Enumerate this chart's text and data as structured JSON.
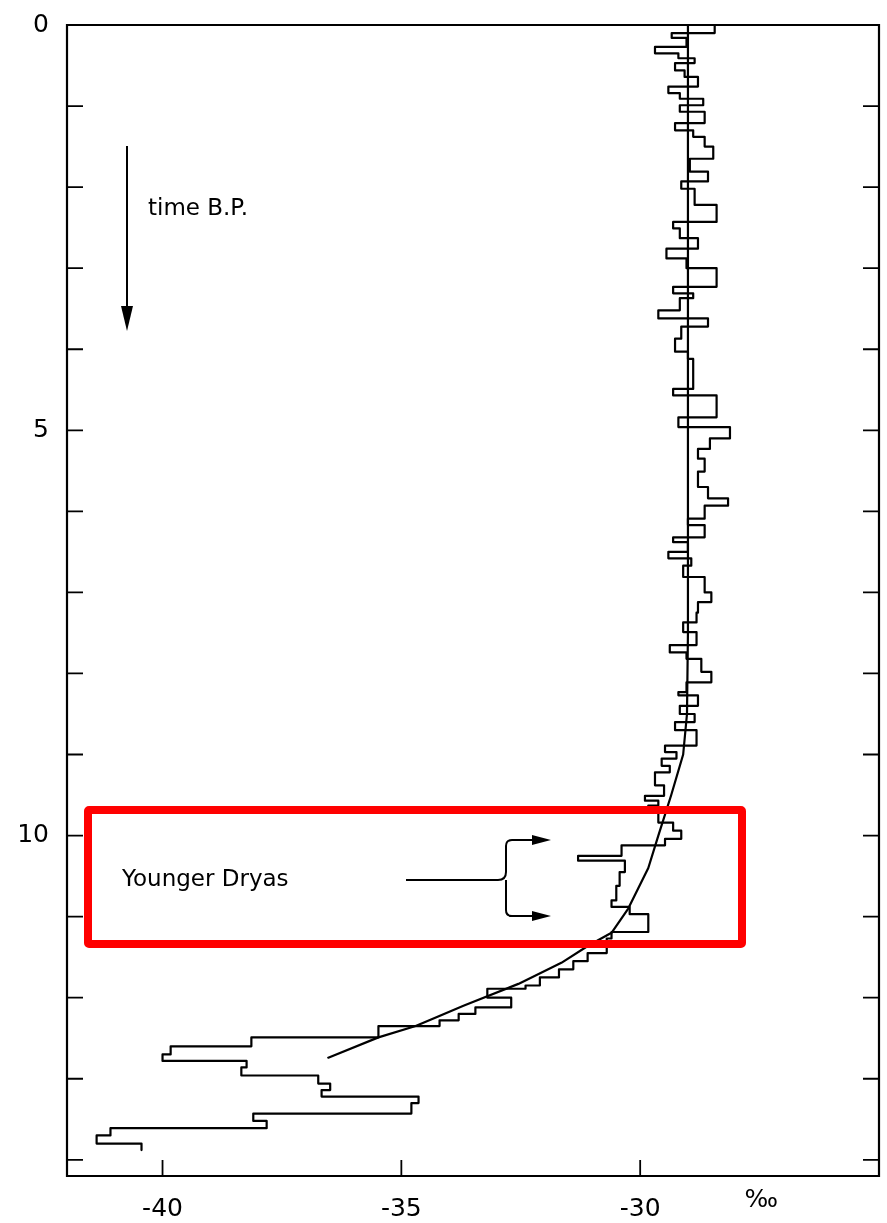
{
  "chart_data": {
    "type": "step",
    "orientation": "horizontal",
    "xlabel": "‰",
    "annotations": [
      "time B.P.",
      "Younger Dryas"
    ],
    "xlim": [
      -42,
      -25
    ],
    "xticks": [
      -40,
      -35,
      -30
    ],
    "ylim": [
      14.2,
      0
    ],
    "yticks": [
      0,
      {
        "value": 1,
        "label": null
      },
      {
        "value": 2,
        "label": null
      },
      {
        "value": 3,
        "label": null
      },
      {
        "value": 4,
        "label": null
      },
      5,
      {
        "value": 6,
        "label": null
      },
      {
        "value": 7,
        "label": null
      },
      {
        "value": 8,
        "label": null
      },
      {
        "value": 9,
        "label": null
      },
      10,
      {
        "value": 11,
        "label": null
      },
      {
        "value": 12,
        "label": null
      },
      {
        "value": 13,
        "label": null
      },
      {
        "value": 14,
        "label": null
      }
    ],
    "series": [
      {
        "color": "#000000",
        "x": [
          0,
          0.1,
          0.16,
          0.27,
          0.35,
          0.41,
          0.47,
          0.56,
          0.64,
          0.76,
          0.84,
          0.91,
          0.99,
          1.07,
          1.21,
          1.3,
          1.38,
          1.5,
          1.65,
          1.81,
          1.93,
          2.02,
          2.22,
          2.43,
          2.51,
          2.63,
          2.76,
          2.88,
          3.0,
          3.23,
          3.31,
          3.37,
          3.52,
          3.62,
          3.72,
          3.87,
          4.03,
          4.12,
          4.49,
          4.57,
          4.84,
          4.96,
          5.1,
          5.23,
          5.35,
          5.51,
          5.7,
          5.84,
          5.93,
          6.09,
          6.17,
          6.32,
          6.38,
          6.5,
          6.58,
          6.67,
          6.81,
          7.0,
          7.12,
          7.25,
          7.37,
          7.49,
          7.65,
          7.74,
          7.82,
          7.98,
          8.11,
          8.23,
          8.27,
          8.4,
          8.5,
          8.6,
          8.7,
          8.89,
          8.97,
          9.05,
          9.14,
          9.22,
          9.38,
          9.51,
          9.57,
          9.63,
          9.69,
          9.84,
          9.94,
          10.04,
          10.12,
          10.25,
          10.31,
          10.45,
          10.62,
          10.8,
          10.88,
          10.97,
          11.19,
          11.27,
          11.45,
          11.55,
          11.65,
          11.75,
          11.85,
          11.89,
          12.0,
          12.12,
          12.2,
          12.28,
          12.35,
          12.49,
          12.6,
          12.7,
          12.78,
          12.86,
          12.96,
          13.06,
          13.14,
          13.22,
          13.3,
          13.43,
          13.52,
          13.61,
          13.7,
          13.8,
          13.88
        ],
        "values": [
          -28.44,
          -29.34,
          -29.03,
          -29.69,
          -29.2,
          -28.86,
          -29.27,
          -29.07,
          -28.79,
          -29.41,
          -29.17,
          -28.68,
          -29.17,
          -28.65,
          -29.27,
          -28.89,
          -28.65,
          -28.47,
          -28.96,
          -28.58,
          -29.14,
          -28.86,
          -28.4,
          -29.31,
          -29.17,
          -28.79,
          -29.45,
          -29.03,
          -28.4,
          -29.31,
          -28.89,
          -29.17,
          -29.62,
          -28.58,
          -29.14,
          -29.27,
          -29.0,
          -28.89,
          -29.31,
          -28.4,
          -29.2,
          -28.12,
          -28.54,
          -28.79,
          -28.65,
          -28.79,
          -28.58,
          -28.16,
          -28.65,
          -29.0,
          -28.65,
          -29.31,
          -29.0,
          -29.41,
          -28.93,
          -29.1,
          -28.65,
          -28.51,
          -28.79,
          -28.82,
          -29.1,
          -28.82,
          -29.38,
          -29.03,
          -28.72,
          -28.51,
          -29.03,
          -29.2,
          -28.79,
          -29.17,
          -28.86,
          -29.27,
          -28.82,
          -29.48,
          -29.24,
          -29.55,
          -29.38,
          -29.69,
          -29.5,
          -29.9,
          -29.62,
          -29.83,
          -29.62,
          -29.31,
          -29.14,
          -29.48,
          -30.39,
          -31.3,
          -30.32,
          -30.43,
          -30.5,
          -30.6,
          -30.22,
          -29.83,
          -30.6,
          -30.7,
          -31.1,
          -31.4,
          -31.7,
          -32.1,
          -32.4,
          -33.2,
          -32.7,
          -33.45,
          -33.8,
          -34.2,
          -35.48,
          -38.14,
          -39.83,
          -40.0,
          -38.24,
          -38.35,
          -36.74,
          -36.49,
          -36.67,
          -34.64,
          -34.79,
          -38.1,
          -37.82,
          -41.09,
          -41.38,
          -40.44,
          -40.44
        ]
      },
      {
        "type": "line",
        "color": "#000000",
        "x": [
          0,
          7.5,
          8.5,
          9.0,
          9.5,
          10.0,
          10.4,
          10.9,
          11.2,
          11.36,
          11.57,
          11.83,
          12.1,
          12.35,
          12.49,
          12.74
        ],
        "values": [
          -29.0,
          -29.0,
          -29.02,
          -29.1,
          -29.35,
          -29.62,
          -29.83,
          -30.25,
          -30.6,
          -31.09,
          -31.65,
          -32.55,
          -33.7,
          -34.7,
          -35.48,
          -36.53
        ]
      }
    ]
  }
}
